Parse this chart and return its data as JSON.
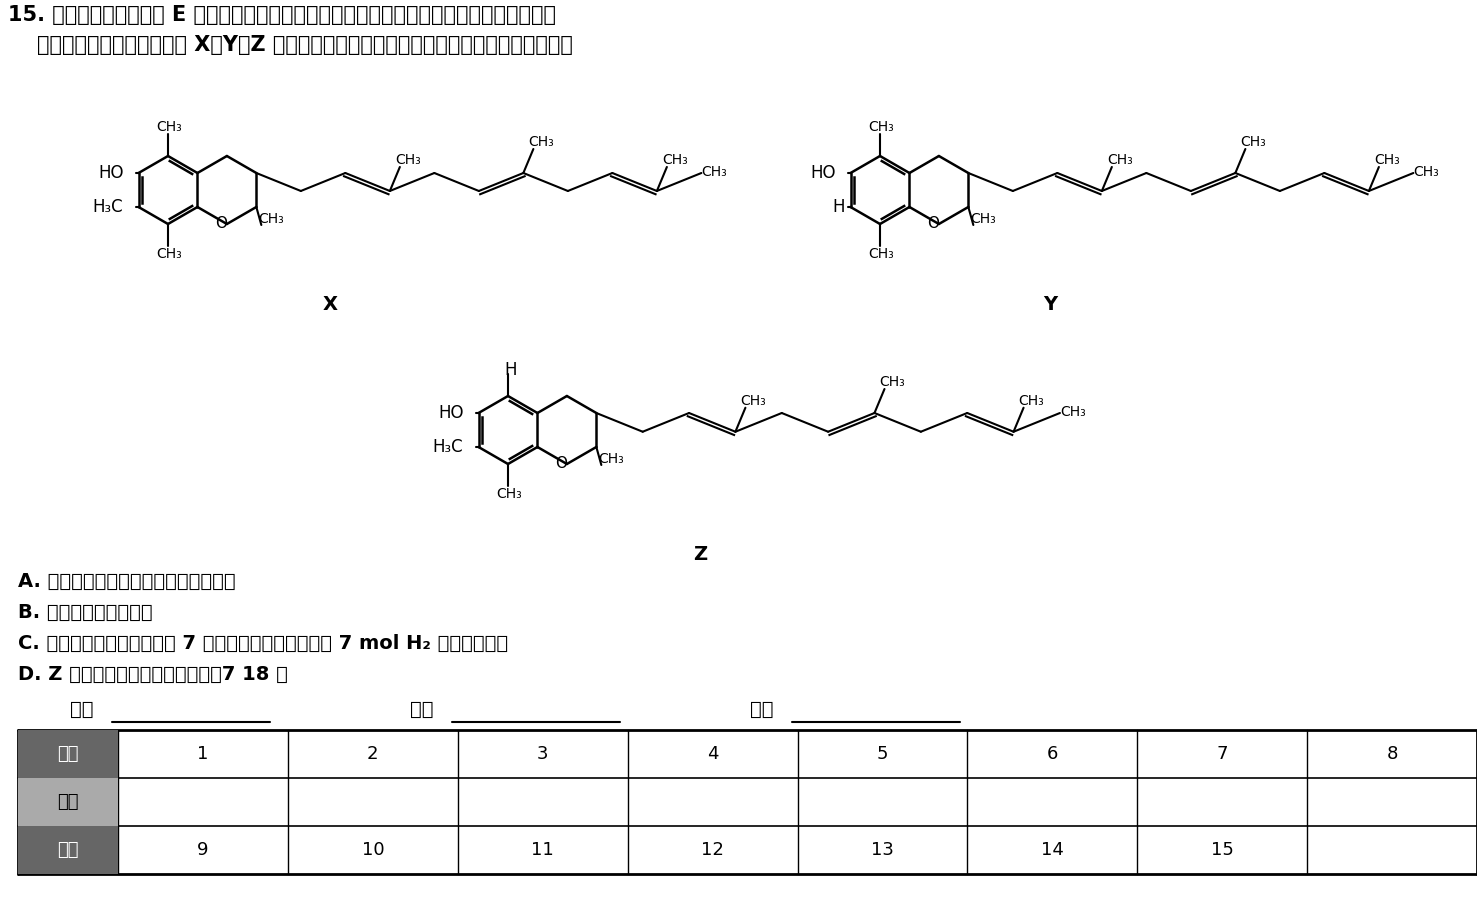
{
  "title_line1": "15. 生育三烯酚是维生素 E 家族的一个成员，是身体不可缺少的营养成分，是棕椰油和米糠油",
  "title_line2": "    中的一种功能性成分。以下 X、Y、Z 是生育三烯酚的三种不同结构，下列有关说法正确的是",
  "option_A": "A. 三种结构中均含有三种不同的官能团",
  "option_B": "B. 三种结构互为同系物",
  "option_C": "C. 三种结构的每个分子中有 7 个碳碳双键，最多可以与 7 mol H₂ 发生加成反应",
  "option_D": "D. Z 的烃基上氢原子的一氯代物月7 18 种",
  "label_class": "班级",
  "label_name": "姓名",
  "label_score": "分数",
  "row1_header": "题号",
  "row1_nums": [
    "1",
    "2",
    "3",
    "4",
    "5",
    "6",
    "7",
    "8"
  ],
  "row2_header": "答案",
  "row3_header": "题号",
  "row3_nums": [
    "9",
    "10",
    "11",
    "12",
    "13",
    "14",
    "15",
    ""
  ],
  "bg_color": "#ffffff",
  "text_color": "#000000",
  "figsize": [
    14.77,
    9.02
  ],
  "dpi": 100
}
